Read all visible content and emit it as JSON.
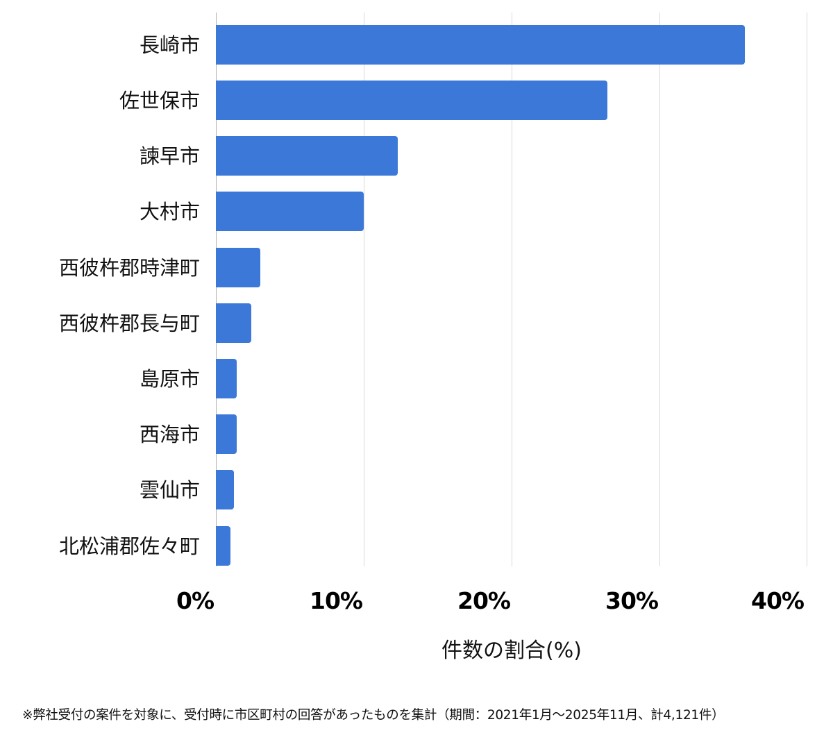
{
  "chart_data": {
    "type": "bar",
    "orientation": "horizontal",
    "title": "",
    "xlabel": "件数の割合(%)",
    "ylabel": "",
    "xlim": [
      0,
      40
    ],
    "x_ticks": [
      "0%",
      "10%",
      "20%",
      "30%",
      "40%"
    ],
    "grid": true,
    "legend": null,
    "bar_color": "#3c78d8",
    "categories": [
      "長崎市",
      "佐世保市",
      "諫早市",
      "大村市",
      "西彼杵郡時津町",
      "西彼杵郡長与町",
      "島原市",
      "西海市",
      "雲仙市",
      "北松浦郡佐々町"
    ],
    "values": [
      35.8,
      26.5,
      12.3,
      10.0,
      3.0,
      2.4,
      1.4,
      1.4,
      1.2,
      1.0
    ],
    "footnote": "※弊社受付の案件を対象に、受付時に市区町村の回答があったものを集計（期間：2021年1月〜2025年11月、計4,121件）"
  }
}
